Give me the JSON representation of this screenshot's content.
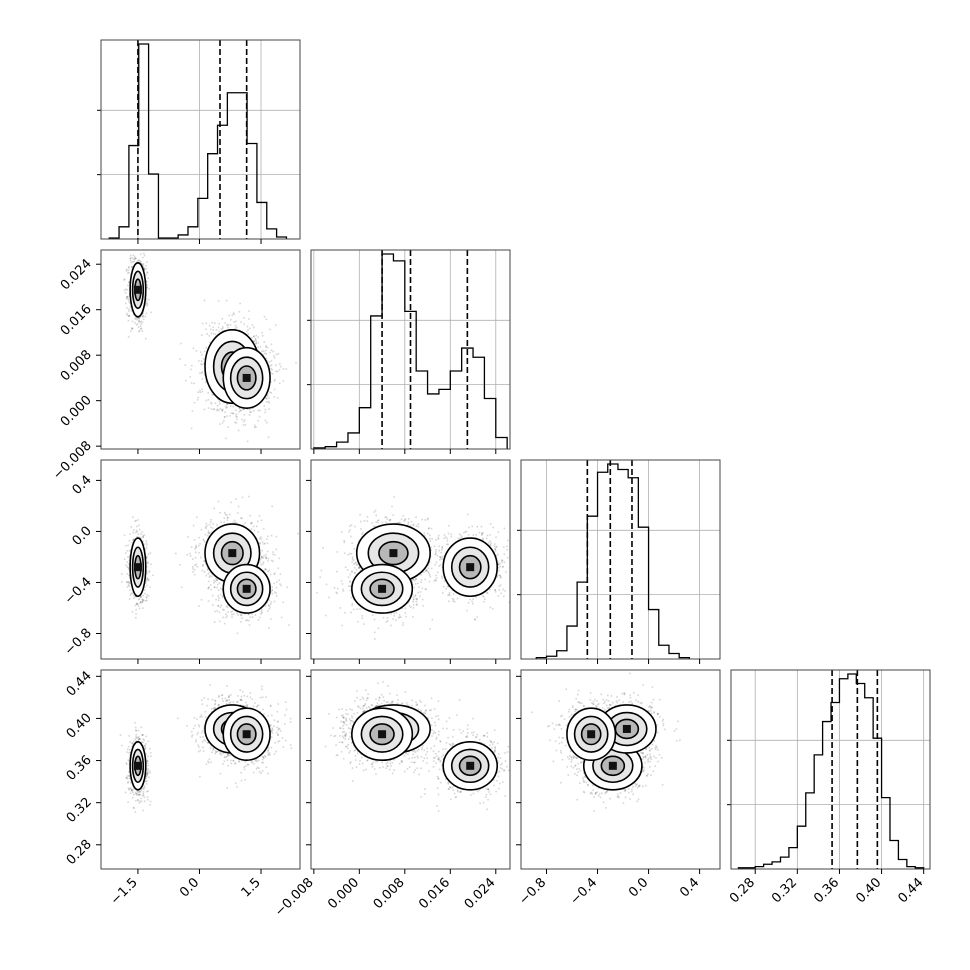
{
  "chart_data": {
    "type": "corner",
    "grid": true,
    "parameters": [
      {
        "range": [
          -2.4,
          2.45
        ],
        "ticks": [
          -1.5,
          0.0,
          1.5
        ],
        "tick_labels": [
          "−1.5",
          "0.0",
          "1.5"
        ],
        "quantiles": [
          -1.5,
          0.5,
          1.15
        ],
        "histogram": {
          "bin_edges": [
            -2.2,
            -1.96,
            -1.72,
            -1.48,
            -1.24,
            -1.0,
            -0.76,
            -0.52,
            -0.28,
            -0.04,
            0.2,
            0.44,
            0.68,
            0.92,
            1.16,
            1.4,
            1.64,
            1.88,
            2.12
          ],
          "counts": [
            0.005,
            0.06,
            0.46,
            0.96,
            0.32,
            0.005,
            0.005,
            0.02,
            0.06,
            0.2,
            0.42,
            0.56,
            0.72,
            0.72,
            0.47,
            0.18,
            0.05,
            0.01
          ]
        }
      },
      {
        "range": [
          -0.0085,
          0.0265
        ],
        "ticks": [
          -0.008,
          0.0,
          0.008,
          0.016,
          0.024
        ],
        "tick_labels": [
          "−0.008",
          "0.000",
          "0.008",
          "0.016",
          "0.024"
        ],
        "quantiles": [
          0.004,
          0.009,
          0.019
        ],
        "histogram": {
          "bin_edges": [
            -0.008,
            -0.006,
            -0.004,
            -0.002,
            0.0,
            0.002,
            0.004,
            0.006,
            0.008,
            0.01,
            0.012,
            0.014,
            0.016,
            0.018,
            0.02,
            0.022,
            0.024,
            0.026
          ],
          "counts": [
            0.005,
            0.01,
            0.03,
            0.07,
            0.18,
            0.58,
            0.85,
            0.82,
            0.6,
            0.34,
            0.24,
            0.26,
            0.34,
            0.44,
            0.4,
            0.22,
            0.05
          ]
        }
      },
      {
        "range": [
          -1.0,
          0.56
        ],
        "ticks": [
          -0.8,
          -0.4,
          0.0,
          0.4
        ],
        "tick_labels": [
          "−0.8",
          "−0.4",
          "0.0",
          "0.4"
        ],
        "quantiles": [
          -0.48,
          -0.3,
          -0.13
        ],
        "histogram": {
          "bin_edges": [
            -0.88,
            -0.8,
            -0.72,
            -0.64,
            -0.56,
            -0.48,
            -0.4,
            -0.32,
            -0.24,
            -0.16,
            -0.08,
            0.0,
            0.08,
            0.16,
            0.24,
            0.32
          ],
          "counts": [
            0.005,
            0.01,
            0.03,
            0.12,
            0.28,
            0.52,
            0.68,
            0.71,
            0.69,
            0.66,
            0.48,
            0.18,
            0.05,
            0.02,
            0.005
          ]
        }
      },
      {
        "range": [
          0.257,
          0.446
        ],
        "ticks": [
          0.28,
          0.32,
          0.36,
          0.4,
          0.44
        ],
        "tick_labels": [
          "0.28",
          "0.32",
          "0.36",
          "0.40",
          "0.44"
        ],
        "quantiles": [
          0.353,
          0.377,
          0.396
        ],
        "histogram": {
          "bin_edges": [
            0.264,
            0.272,
            0.28,
            0.288,
            0.296,
            0.304,
            0.312,
            0.32,
            0.328,
            0.336,
            0.344,
            0.352,
            0.36,
            0.368,
            0.376,
            0.384,
            0.392,
            0.4,
            0.408,
            0.416,
            0.424,
            0.432,
            0.44
          ],
          "counts": [
            0.005,
            0.005,
            0.01,
            0.02,
            0.03,
            0.05,
            0.09,
            0.18,
            0.32,
            0.48,
            0.62,
            0.7,
            0.8,
            0.82,
            0.78,
            0.72,
            0.55,
            0.3,
            0.12,
            0.04,
            0.01,
            0.005
          ]
        }
      }
    ],
    "modes": [
      {
        "x": [
          -1.5,
          0.0195,
          -0.28,
          0.355
        ],
        "sd": [
          0.1,
          0.0025,
          0.12,
          0.012
        ],
        "weight": 0.3
      },
      {
        "x": [
          0.8,
          0.006,
          -0.17,
          0.39
        ],
        "sd": [
          0.35,
          0.0034,
          0.12,
          0.012
        ],
        "weight": 0.35
      },
      {
        "x": [
          1.15,
          0.004,
          -0.45,
          0.385
        ],
        "sd": [
          0.3,
          0.0028,
          0.1,
          0.013
        ],
        "weight": 0.35
      }
    ]
  }
}
